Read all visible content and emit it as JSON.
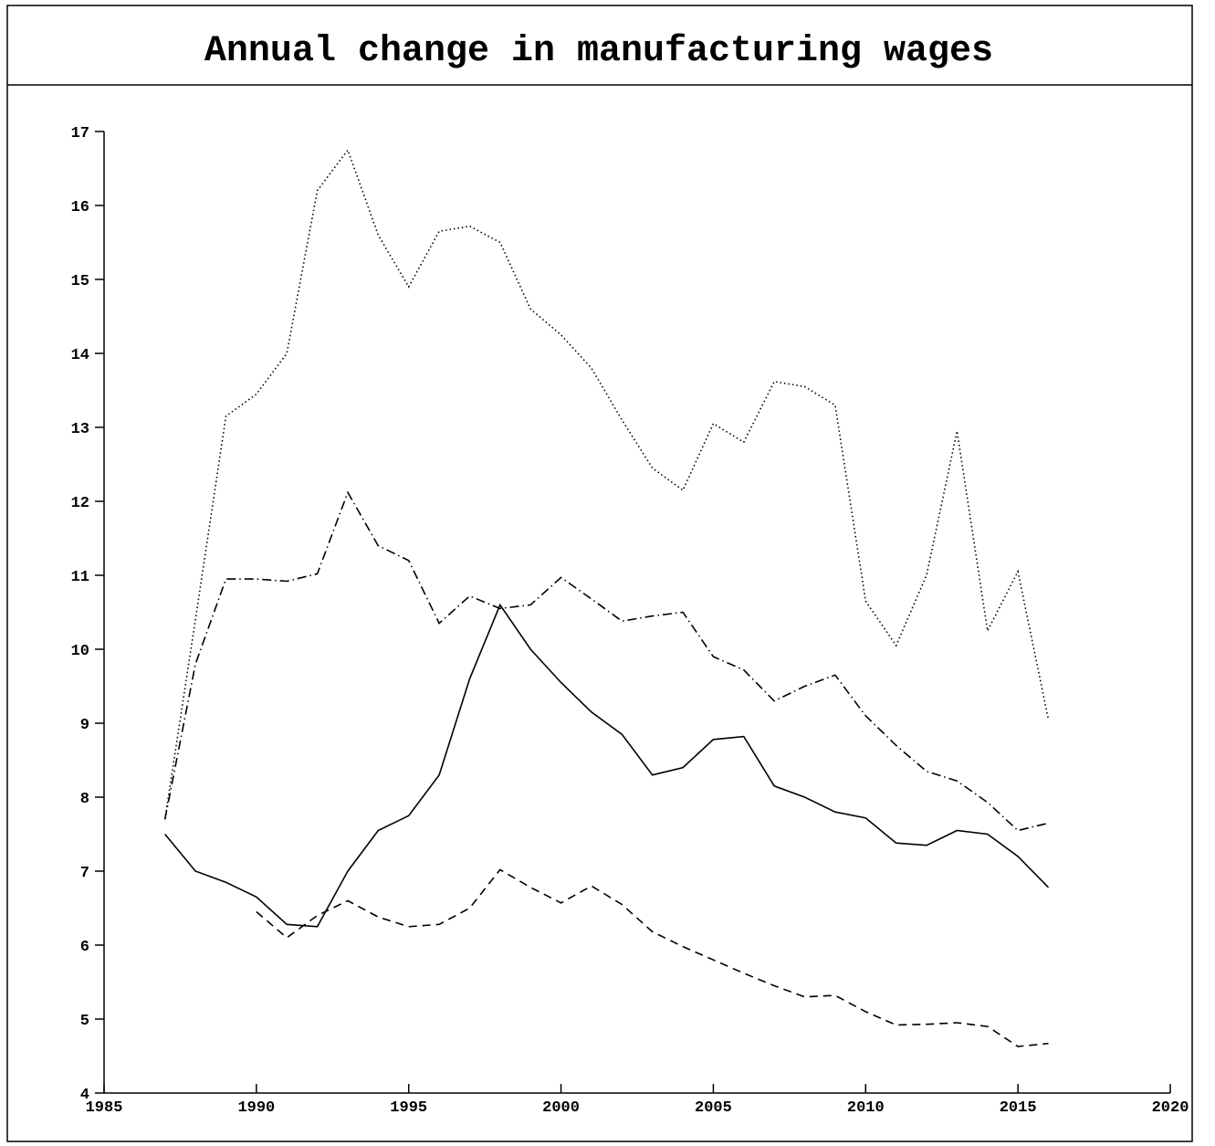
{
  "chart_data": {
    "type": "line",
    "title": "Annual change in manufacturing wages",
    "x": [
      1987,
      1988,
      1989,
      1990,
      1991,
      1992,
      1993,
      1994,
      1995,
      1996,
      1997,
      1998,
      1999,
      2000,
      2001,
      2002,
      2003,
      2004,
      2005,
      2006,
      2007,
      2008,
      2009,
      2010,
      2011,
      2012,
      2013,
      2014,
      2015,
      2016
    ],
    "series": [
      {
        "color": "#000000",
        "dash": "solid",
        "values": [
          7.5,
          7.0,
          6.85,
          6.65,
          6.28,
          6.25,
          7.0,
          7.55,
          7.75,
          8.3,
          9.6,
          10.6,
          10.0,
          9.55,
          9.15,
          8.85,
          8.3,
          8.4,
          8.78,
          8.82,
          8.15,
          8.0,
          7.8,
          7.72,
          7.38,
          7.35,
          7.55,
          7.5,
          7.2,
          6.78
        ]
      },
      {
        "color": "#000000",
        "dash": "dotted",
        "values": [
          7.7,
          10.4,
          13.15,
          13.45,
          14.0,
          16.2,
          16.75,
          15.6,
          14.9,
          15.65,
          15.72,
          15.5,
          14.6,
          14.25,
          13.8,
          13.1,
          12.45,
          12.15,
          13.05,
          12.8,
          13.62,
          13.55,
          13.3,
          10.65,
          10.05,
          11.0,
          12.95,
          10.25,
          11.05,
          9.05
        ]
      },
      {
        "color": "#000000",
        "dash": "dashdot",
        "values": [
          7.7,
          9.8,
          10.95,
          10.95,
          10.92,
          11.02,
          12.12,
          11.4,
          11.2,
          10.35,
          10.72,
          10.55,
          10.6,
          10.97,
          10.68,
          10.38,
          10.45,
          10.5,
          9.9,
          9.72,
          9.3,
          9.5,
          9.65,
          9.1,
          8.7,
          8.35,
          8.22,
          7.93,
          7.55,
          7.65
        ]
      },
      {
        "color": "#000000",
        "dash": "dashed",
        "values": [
          null,
          null,
          null,
          6.45,
          6.1,
          6.4,
          6.6,
          6.38,
          6.25,
          6.28,
          6.5,
          7.02,
          6.78,
          6.57,
          6.8,
          6.55,
          6.18,
          5.98,
          5.8,
          5.62,
          5.45,
          5.3,
          5.32,
          5.1,
          4.92,
          4.93,
          4.95,
          4.9,
          4.63,
          4.67
        ]
      }
    ],
    "xlim": [
      1985,
      2020
    ],
    "xticks": [
      1985,
      1990,
      1995,
      2000,
      2005,
      2010,
      2015,
      2020
    ],
    "ylim": [
      4,
      17
    ],
    "yticks": [
      4,
      5,
      6,
      7,
      8,
      9,
      10,
      11,
      12,
      13,
      14,
      15,
      16,
      17
    ]
  }
}
